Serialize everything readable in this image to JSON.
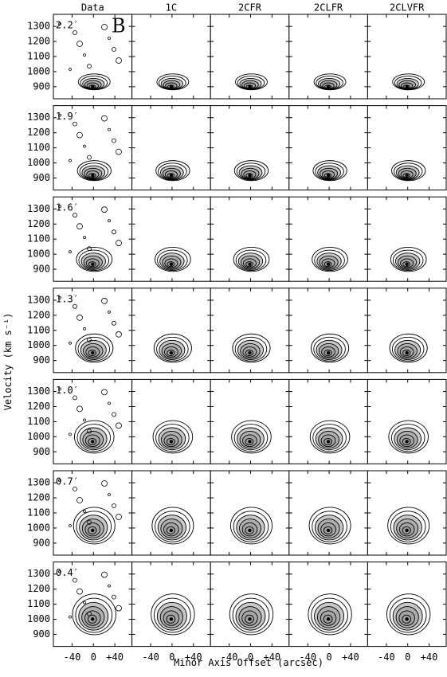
{
  "chart_data": {
    "type": "contour-grid",
    "columns": [
      "Data",
      "1C",
      "2CFR",
      "2CLFR",
      "2CLVFR"
    ],
    "rows": [
      "2.2′",
      "1.9′",
      "1.6′",
      "1.3′",
      "1.0′",
      "0.7′",
      "0.4′"
    ],
    "panel_letter": "B",
    "xlabel": "Minor Axis Offset (arcsec)",
    "ylabel": "Velocity (km s⁻¹)",
    "xlim": [
      -75,
      72
    ],
    "xticks": [
      -40,
      0,
      {
        "value": 40,
        "label": "+40"
      }
    ],
    "ylim": [
      1380,
      820
    ],
    "yticks": [
      900,
      1000,
      1100,
      1200,
      1300
    ],
    "contour_color": "#000000",
    "fill_color": "#9a9a9a"
  }
}
